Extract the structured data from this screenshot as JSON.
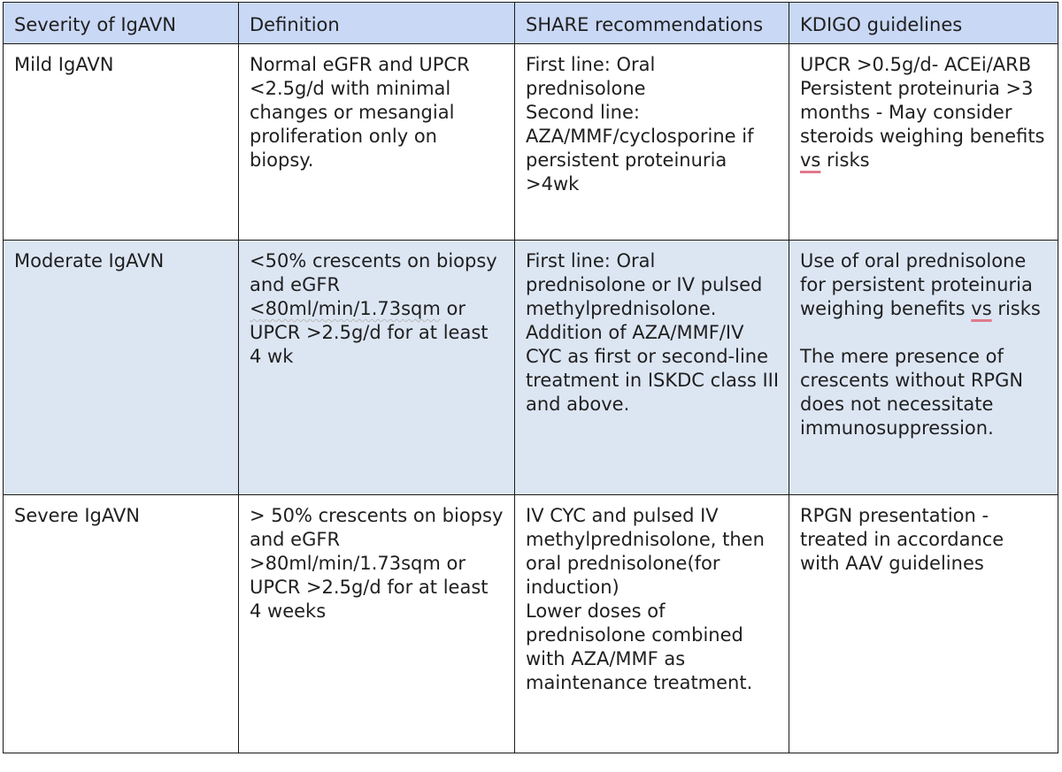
{
  "headers": [
    "Severity of IgAVN",
    "Definition",
    "SHARE recommendations",
    "KDIGO guidelines"
  ],
  "rows": [
    {
      "severity": "Mild IgAVN",
      "definition": "Normal eGFR and UPCR <2.5g/d with minimal changes or mesangial proliferation only on biopsy.",
      "share": [
        "First line: Oral prednisolone",
        "Second line: AZA/MMF/cyclosporine if persistent proteinuria >4wk"
      ],
      "kdigo": {
        "line1": "UPCR >0.5g/d- ACEi/ARB",
        "line2_pre": "Persistent proteinuria >3 months - May consider steroids weighing benefits ",
        "line2_vs": "vs",
        "line2_post": " risks"
      }
    },
    {
      "severity": "Moderate IgAVN",
      "definition": {
        "pre": "<50% crescents on biopsy and eGFR ",
        "underlined": "<80ml/min/1.73sqm",
        "post": " or UPCR >2.5g/d for at least 4 wk"
      },
      "share": [
        "First line: Oral prednisolone or IV pulsed methylprednisolone.",
        "Addition of AZA/MMF/IV CYC as first or second-line treatment in ISKDC class III and above."
      ],
      "kdigo": {
        "para1_pre": "Use of oral prednisolone for persistent proteinuria weighing benefits ",
        "para1_vs": "vs",
        "para1_post": " risks",
        "para2": "The mere presence of crescents without RPGN does not necessitate immunosuppression."
      }
    },
    {
      "severity": "Severe IgAVN",
      "definition": "> 50% crescents on biopsy and eGFR >80ml/min/1.73sqm or UPCR >2.5g/d for at least 4 weeks",
      "share": [
        "IV CYC and pulsed IV methylprednisolone, then oral prednisolone(for induction)",
        "Lower doses of prednisolone combined with AZA/MMF as maintenance treatment."
      ],
      "kdigo": "RPGN presentation - treated in accordance with AAV guidelines"
    }
  ]
}
